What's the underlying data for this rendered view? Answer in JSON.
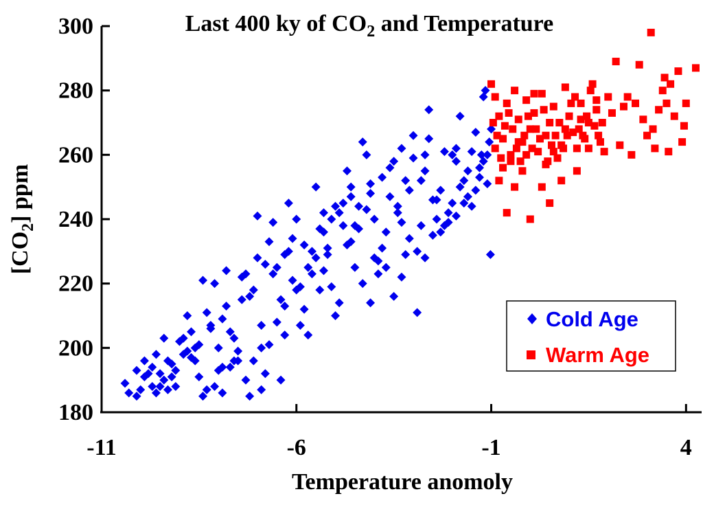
{
  "chart_data": {
    "type": "scatter",
    "title": "Last 400 ky of CO",
    "title_subscript": "2",
    "title_suffix": " and Temperature",
    "xlabel": "Temperature anomoly",
    "ylabel": "[CO",
    "ylabel_subscript": "2",
    "ylabel_suffix": "] ppm",
    "xlim": [
      -11,
      4.4
    ],
    "ylim": [
      180,
      300
    ],
    "xticks": [
      -11,
      -6,
      -1,
      4
    ],
    "yticks": [
      180,
      200,
      220,
      240,
      260,
      280,
      300
    ],
    "grid": false,
    "legend_position": "bottom-right",
    "series": [
      {
        "name": "Cold Age",
        "marker": "diamond",
        "color": "#0000ee",
        "points": [
          [
            -10.4,
            189
          ],
          [
            -10.3,
            186
          ],
          [
            -10.1,
            185
          ],
          [
            -9.9,
            191
          ],
          [
            -9.7,
            188
          ],
          [
            -9.6,
            186
          ],
          [
            -9.5,
            192
          ],
          [
            -9.4,
            190
          ],
          [
            -9.3,
            196
          ],
          [
            -9.2,
            195
          ],
          [
            -9.1,
            193
          ],
          [
            -9.0,
            202
          ],
          [
            -8.9,
            203
          ],
          [
            -8.8,
            199
          ],
          [
            -8.7,
            205
          ],
          [
            -8.6,
            200
          ],
          [
            -8.5,
            201
          ],
          [
            -8.4,
            221
          ],
          [
            -8.3,
            211
          ],
          [
            -8.2,
            207
          ],
          [
            -8.1,
            220
          ],
          [
            -8.0,
            200
          ],
          [
            -7.9,
            209
          ],
          [
            -7.8,
            213
          ],
          [
            -7.7,
            205
          ],
          [
            -7.6,
            203
          ],
          [
            -7.5,
            199
          ],
          [
            -7.4,
            215
          ],
          [
            -7.3,
            223
          ],
          [
            -7.2,
            216
          ],
          [
            -7.1,
            218
          ],
          [
            -7.0,
            241
          ],
          [
            -6.9,
            200
          ],
          [
            -6.8,
            226
          ],
          [
            -6.7,
            233
          ],
          [
            -6.6,
            239
          ],
          [
            -6.5,
            225
          ],
          [
            -6.4,
            215
          ],
          [
            -6.3,
            229
          ],
          [
            -6.2,
            245
          ],
          [
            -6.1,
            234
          ],
          [
            -6.0,
            240
          ],
          [
            -5.9,
            219
          ],
          [
            -5.8,
            212
          ],
          [
            -5.7,
            225
          ],
          [
            -5.6,
            230
          ],
          [
            -5.5,
            250
          ],
          [
            -5.4,
            218
          ],
          [
            -5.3,
            236
          ],
          [
            -5.2,
            231
          ],
          [
            -5.1,
            240
          ],
          [
            -5.0,
            210
          ],
          [
            -4.9,
            242
          ],
          [
            -4.8,
            245
          ],
          [
            -4.7,
            255
          ],
          [
            -4.6,
            233
          ],
          [
            -4.5,
            238
          ],
          [
            -4.4,
            244
          ],
          [
            -4.3,
            264
          ],
          [
            -4.2,
            260
          ],
          [
            -4.1,
            248
          ],
          [
            -4.0,
            228
          ],
          [
            -3.9,
            227
          ],
          [
            -3.8,
            231
          ],
          [
            -3.7,
            236
          ],
          [
            -3.6,
            256
          ],
          [
            -3.5,
            258
          ],
          [
            -3.4,
            242
          ],
          [
            -3.3,
            239
          ],
          [
            -3.2,
            229
          ],
          [
            -3.1,
            249
          ],
          [
            -3.0,
            266
          ],
          [
            -2.9,
            230
          ],
          [
            -2.8,
            252
          ],
          [
            -2.7,
            255
          ],
          [
            -2.6,
            274
          ],
          [
            -2.5,
            235
          ],
          [
            -2.4,
            240
          ],
          [
            -2.3,
            249
          ],
          [
            -2.2,
            238
          ],
          [
            -2.1,
            242
          ],
          [
            -2.0,
            260
          ],
          [
            -1.9,
            262
          ],
          [
            -1.8,
            250
          ],
          [
            -1.7,
            252
          ],
          [
            -1.6,
            255
          ],
          [
            -1.5,
            244
          ],
          [
            -1.4,
            249
          ],
          [
            -1.3,
            253
          ],
          [
            -1.2,
            278
          ],
          [
            -1.1,
            260
          ],
          [
            -1.0,
            268
          ],
          [
            -1.05,
            264
          ],
          [
            -1.02,
            229
          ],
          [
            -1.1,
            251
          ],
          [
            -1.3,
            256
          ],
          [
            -1.5,
            261
          ],
          [
            -1.7,
            245
          ],
          [
            -1.9,
            241
          ],
          [
            -2.1,
            239
          ],
          [
            -2.3,
            236
          ],
          [
            -2.5,
            246
          ],
          [
            -2.7,
            228
          ],
          [
            -2.9,
            211
          ],
          [
            -3.1,
            234
          ],
          [
            -3.3,
            222
          ],
          [
            -3.5,
            216
          ],
          [
            -3.7,
            225
          ],
          [
            -3.9,
            223
          ],
          [
            -4.1,
            214
          ],
          [
            -4.3,
            220
          ],
          [
            -4.5,
            225
          ],
          [
            -4.7,
            232
          ],
          [
            -4.9,
            214
          ],
          [
            -5.1,
            219
          ],
          [
            -5.3,
            224
          ],
          [
            -5.5,
            228
          ],
          [
            -5.7,
            204
          ],
          [
            -5.9,
            207
          ],
          [
            -6.1,
            221
          ],
          [
            -6.3,
            213
          ],
          [
            -6.5,
            208
          ],
          [
            -6.7,
            201
          ],
          [
            -6.9,
            207
          ],
          [
            -7.1,
            196
          ],
          [
            -7.3,
            190
          ],
          [
            -7.5,
            196
          ],
          [
            -7.7,
            194
          ],
          [
            -7.9,
            194
          ],
          [
            -8.1,
            188
          ],
          [
            -8.3,
            187
          ],
          [
            -8.5,
            191
          ],
          [
            -8.7,
            197
          ],
          [
            -8.9,
            198
          ],
          [
            -9.1,
            188
          ],
          [
            -9.3,
            187
          ],
          [
            -9.5,
            188
          ],
          [
            -9.7,
            194
          ],
          [
            -9.9,
            196
          ],
          [
            -10.1,
            193
          ],
          [
            -10.0,
            187
          ],
          [
            -9.8,
            192
          ],
          [
            -9.2,
            191
          ],
          [
            -8.6,
            196
          ],
          [
            -8.0,
            193
          ],
          [
            -7.6,
            196
          ],
          [
            -7.2,
            185
          ],
          [
            -6.8,
            192
          ],
          [
            -6.4,
            190
          ],
          [
            -6.0,
            218
          ],
          [
            -5.6,
            223
          ],
          [
            -5.2,
            229
          ],
          [
            -4.8,
            238
          ],
          [
            -4.4,
            237
          ],
          [
            -4.0,
            240
          ],
          [
            -3.6,
            247
          ],
          [
            -3.2,
            252
          ],
          [
            -2.8,
            238
          ],
          [
            -2.4,
            246
          ],
          [
            -2.0,
            245
          ],
          [
            -1.6,
            247
          ],
          [
            -1.2,
            258
          ],
          [
            -1.4,
            267
          ],
          [
            -1.8,
            272
          ],
          [
            -2.2,
            261
          ],
          [
            -2.6,
            265
          ],
          [
            -3.0,
            259
          ],
          [
            -3.4,
            244
          ],
          [
            -3.8,
            253
          ],
          [
            -4.2,
            243
          ],
          [
            -4.6,
            250
          ],
          [
            -5.0,
            244
          ],
          [
            -5.4,
            237
          ],
          [
            -5.8,
            232
          ],
          [
            -6.2,
            230
          ],
          [
            -6.6,
            223
          ],
          [
            -7.0,
            228
          ],
          [
            -7.4,
            222
          ],
          [
            -7.8,
            224
          ],
          [
            -8.2,
            206
          ],
          [
            -8.8,
            210
          ],
          [
            -9.4,
            203
          ],
          [
            -9.6,
            198
          ],
          [
            -8.4,
            185
          ],
          [
            -7.9,
            186
          ],
          [
            -6.9,
            187
          ],
          [
            -6.3,
            204
          ],
          [
            -5.3,
            242
          ],
          [
            -4.6,
            247
          ],
          [
            -4.1,
            251
          ],
          [
            -3.3,
            262
          ],
          [
            -2.7,
            260
          ],
          [
            -1.9,
            258
          ],
          [
            -1.25,
            260
          ],
          [
            -1.15,
            280
          ]
        ]
      },
      {
        "name": "Warm Age",
        "marker": "square",
        "color": "#ff0000",
        "points": [
          [
            -1.0,
            282
          ],
          [
            -0.9,
            278
          ],
          [
            -0.8,
            272
          ],
          [
            -0.7,
            265
          ],
          [
            -0.6,
            276
          ],
          [
            -0.5,
            260
          ],
          [
            -0.4,
            280
          ],
          [
            -0.3,
            271
          ],
          [
            -0.2,
            264
          ],
          [
            -0.1,
            277
          ],
          [
            0.0,
            268
          ],
          [
            0.1,
            273
          ],
          [
            0.2,
            261
          ],
          [
            0.3,
            279
          ],
          [
            0.4,
            266
          ],
          [
            0.5,
            270
          ],
          [
            0.6,
            275
          ],
          [
            0.7,
            259
          ],
          [
            0.8,
            263
          ],
          [
            0.9,
            281
          ],
          [
            1.0,
            272
          ],
          [
            1.1,
            267
          ],
          [
            1.2,
            262
          ],
          [
            1.3,
            276
          ],
          [
            1.4,
            265
          ],
          [
            1.5,
            270
          ],
          [
            1.6,
            282
          ],
          [
            1.7,
            274
          ],
          [
            1.8,
            264
          ],
          [
            1.9,
            261
          ],
          [
            2.0,
            278
          ],
          [
            2.2,
            289
          ],
          [
            2.4,
            275
          ],
          [
            2.6,
            260
          ],
          [
            2.8,
            288
          ],
          [
            3.0,
            266
          ],
          [
            3.1,
            298
          ],
          [
            3.2,
            262
          ],
          [
            3.4,
            280
          ],
          [
            3.5,
            276
          ],
          [
            3.6,
            282
          ],
          [
            3.8,
            286
          ],
          [
            3.9,
            264
          ],
          [
            4.0,
            276
          ],
          [
            3.7,
            272
          ],
          [
            3.3,
            274
          ],
          [
            2.9,
            271
          ],
          [
            2.5,
            278
          ],
          [
            2.1,
            273
          ],
          [
            1.5,
            262
          ],
          [
            1.2,
            255
          ],
          [
            0.8,
            252
          ],
          [
            0.5,
            245
          ],
          [
            0.3,
            250
          ],
          [
            0.0,
            240
          ],
          [
            -0.2,
            255
          ],
          [
            -0.4,
            250
          ],
          [
            -0.6,
            242
          ],
          [
            -0.8,
            252
          ],
          [
            -0.9,
            262
          ],
          [
            -0.95,
            270
          ],
          [
            -0.85,
            266
          ],
          [
            -0.75,
            259
          ],
          [
            -0.65,
            269
          ],
          [
            -0.55,
            273
          ],
          [
            -0.45,
            268
          ],
          [
            -0.35,
            262
          ],
          [
            -0.25,
            258
          ],
          [
            -0.15,
            266
          ],
          [
            -0.05,
            272
          ],
          [
            0.05,
            262
          ],
          [
            0.15,
            268
          ],
          [
            0.25,
            265
          ],
          [
            0.35,
            274
          ],
          [
            0.45,
            258
          ],
          [
            0.55,
            263
          ],
          [
            0.65,
            266
          ],
          [
            0.75,
            270
          ],
          [
            0.85,
            262
          ],
          [
            0.95,
            266
          ],
          [
            1.05,
            276
          ],
          [
            1.15,
            278
          ],
          [
            1.25,
            268
          ],
          [
            1.35,
            266
          ],
          [
            1.45,
            272
          ],
          [
            1.55,
            280
          ],
          [
            1.65,
            269
          ],
          [
            1.75,
            266
          ],
          [
            1.85,
            270
          ],
          [
            -0.7,
            256
          ],
          [
            -0.5,
            258
          ],
          [
            -0.3,
            264
          ],
          [
            -0.1,
            260
          ],
          [
            0.1,
            279
          ],
          [
            0.4,
            257
          ],
          [
            0.6,
            261
          ],
          [
            0.9,
            268
          ],
          [
            1.3,
            271
          ],
          [
            1.7,
            277
          ],
          [
            2.3,
            263
          ],
          [
            2.7,
            276
          ],
          [
            3.15,
            268
          ],
          [
            3.55,
            261
          ],
          [
            3.95,
            269
          ],
          [
            4.25,
            287
          ],
          [
            3.45,
            284
          ]
        ]
      }
    ],
    "legend": [
      {
        "label": "Cold Age",
        "marker": "diamond",
        "color": "#0000ee"
      },
      {
        "label": "Warm Age",
        "marker": "square",
        "color": "#ff0000"
      }
    ]
  }
}
